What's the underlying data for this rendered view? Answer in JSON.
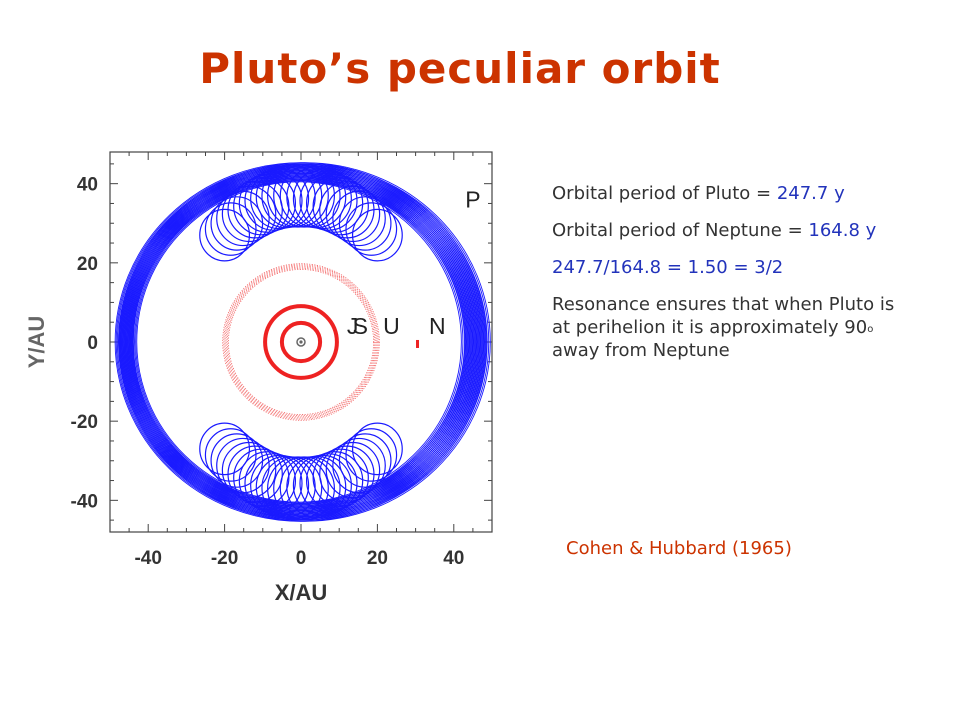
{
  "title": "Pluto’s peculiar orbit",
  "colors": {
    "title": "#cc3300",
    "pluto_orbit": "#1a1aff",
    "planet_orbits": "#ee2222",
    "text": "#333333",
    "highlight": "#2233bb"
  },
  "info": {
    "pluto_period_label": "Orbital period of Pluto = ",
    "pluto_period_value": "247.7 y",
    "neptune_period_label": "Orbital period of Neptune = ",
    "neptune_period_value": "164.8 y",
    "ratio": "247.7/164.8 = 1.50 = 3/2",
    "resonance_text": "Resonance ensures that when Pluto is at perihelion it is approximately 90",
    "resonance_deg": "o",
    "resonance_text_end": " away from Neptune"
  },
  "citation": "Cohen & Hubbard (1965)",
  "chart_data": {
    "type": "scatter",
    "xlabel": "X/AU",
    "ylabel": "Y/AU",
    "xlim": [
      -50,
      50
    ],
    "ylim": [
      -48,
      48
    ],
    "xticks": [
      -40,
      -20,
      0,
      20,
      40
    ],
    "yticks": [
      40,
      20,
      0,
      -20,
      -40
    ],
    "planet_labels": [
      {
        "text": "J",
        "x": 12,
        "y": 2
      },
      {
        "text": "S",
        "x": 13.5,
        "y": 2
      },
      {
        "text": "U",
        "x": 21.5,
        "y": 2
      },
      {
        "text": "N",
        "x": 33.5,
        "y": 2
      },
      {
        "text": "P",
        "x": 43,
        "y": 34
      }
    ],
    "orbits": [
      {
        "name": "Jupiter",
        "radius_au": 5.2
      },
      {
        "name": "Saturn",
        "radius_au": 9.5
      },
      {
        "name": "Uranus",
        "radius_au": 19.2
      },
      {
        "name": "Neptune",
        "radius_au": 30.1
      }
    ]
  }
}
